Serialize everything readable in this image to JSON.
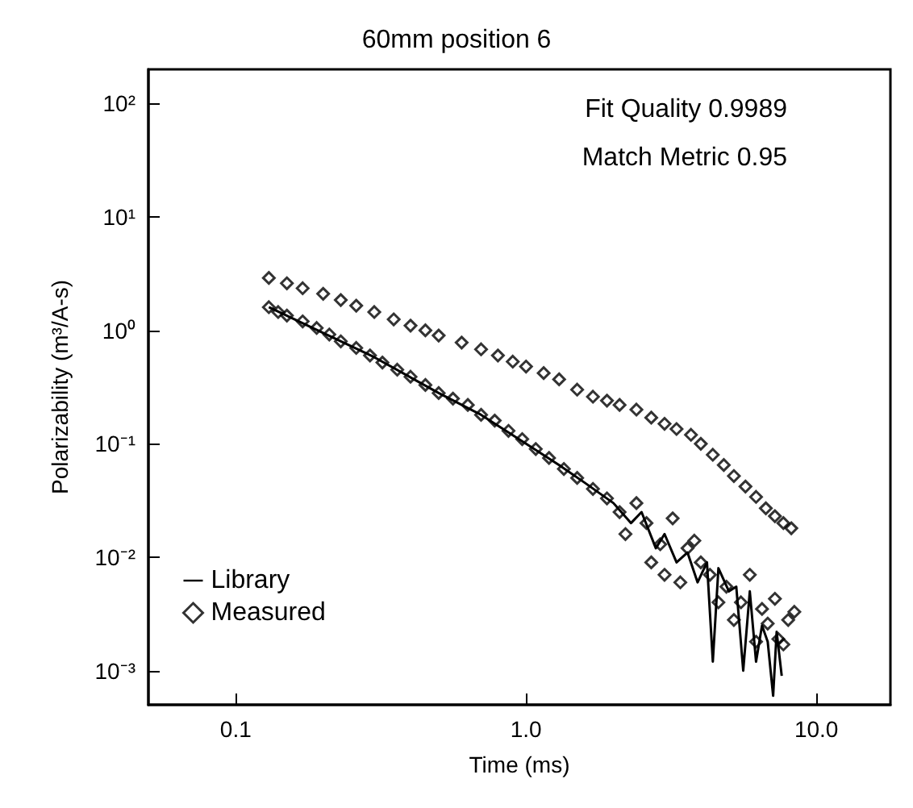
{
  "chart_data": {
    "type": "scatter",
    "title": "60mm position 6",
    "xlabel": "Time (ms)",
    "ylabel": "Polarizability (m³/A-s)",
    "log": "xy",
    "xlim": [
      0.05,
      18
    ],
    "ylim": [
      0.0005,
      200
    ],
    "xticks": [
      {
        "value": 0.1,
        "label": "0.1"
      },
      {
        "value": 1,
        "label": "1.0"
      },
      {
        "value": 10,
        "label": "10.0"
      }
    ],
    "yticks": [
      {
        "value": 0.001,
        "label": "10⁻³"
      },
      {
        "value": 0.01,
        "label": "10⁻²"
      },
      {
        "value": 0.1,
        "label": "10⁻¹"
      },
      {
        "value": 1,
        "label": "10⁰"
      },
      {
        "value": 10,
        "label": "10¹"
      },
      {
        "value": 100,
        "label": "10²"
      }
    ],
    "annotations": [
      "Fit Quality 0.9989",
      "Match Metric 0.95"
    ],
    "legend": "bottom left",
    "grid": false,
    "series": [
      {
        "name": "Library",
        "type": "line",
        "color": "#000000",
        "line_style": "solid",
        "marker": "none",
        "x": [
          0.13,
          0.2,
          0.3,
          0.5,
          0.7,
          1.0,
          1.3,
          1.6,
          2.0,
          2.3,
          2.5,
          2.8,
          3.0,
          3.3,
          3.6,
          3.9,
          4.2,
          4.4,
          4.6,
          5.0,
          5.3,
          5.6,
          5.9,
          6.2,
          6.5,
          6.8,
          7.1,
          7.3,
          7.6
        ],
        "values": [
          1.6,
          0.95,
          0.58,
          0.28,
          0.18,
          0.1,
          0.065,
          0.045,
          0.03,
          0.02,
          0.025,
          0.012,
          0.016,
          0.009,
          0.011,
          0.006,
          0.009,
          0.0012,
          0.008,
          0.005,
          0.0055,
          0.001,
          0.005,
          0.0012,
          0.0025,
          0.0018,
          0.0006,
          0.0022,
          0.0009
        ]
      },
      {
        "name": "Measured",
        "color": "#000000",
        "marker": "diamond",
        "x": [
          0.13,
          0.14,
          0.15,
          0.17,
          0.19,
          0.21,
          0.23,
          0.26,
          0.29,
          0.32,
          0.36,
          0.4,
          0.45,
          0.5,
          0.56,
          0.63,
          0.7,
          0.78,
          0.87,
          0.97,
          1.08,
          1.2,
          1.35,
          1.5,
          1.7,
          1.9,
          2.1,
          2.2,
          2.4,
          2.6,
          2.7,
          2.9,
          3.0,
          3.2,
          3.4,
          3.6,
          3.8,
          4.0,
          4.3,
          4.6,
          4.9,
          5.2,
          5.5,
          5.9,
          6.2,
          6.5,
          6.8,
          7.2,
          7.4,
          7.7,
          8.0,
          8.4
        ],
        "values": [
          1.6,
          1.45,
          1.35,
          1.2,
          1.05,
          0.92,
          0.8,
          0.7,
          0.6,
          0.52,
          0.45,
          0.39,
          0.33,
          0.28,
          0.25,
          0.22,
          0.18,
          0.16,
          0.13,
          0.11,
          0.09,
          0.075,
          0.06,
          0.05,
          0.04,
          0.033,
          0.025,
          0.016,
          0.03,
          0.02,
          0.009,
          0.013,
          0.007,
          0.022,
          0.006,
          0.012,
          0.014,
          0.009,
          0.007,
          0.004,
          0.0055,
          0.0028,
          0.004,
          0.007,
          0.0018,
          0.0035,
          0.0026,
          0.0043,
          0.0019,
          0.0017,
          0.0028,
          0.0033
        ]
      },
      {
        "color": "#000000",
        "marker": "diamond",
        "x": [
          0.13,
          0.15,
          0.17,
          0.2,
          0.23,
          0.26,
          0.3,
          0.35,
          0.4,
          0.45,
          0.5,
          0.6,
          0.7,
          0.8,
          0.9,
          1.0,
          1.15,
          1.3,
          1.5,
          1.7,
          1.9,
          2.1,
          2.4,
          2.7,
          3.0,
          3.3,
          3.7,
          4.0,
          4.4,
          4.8,
          5.2,
          5.7,
          6.2,
          6.7,
          7.2,
          7.7,
          8.2
        ],
        "values": [
          2.9,
          2.6,
          2.35,
          2.1,
          1.85,
          1.65,
          1.45,
          1.25,
          1.1,
          1.0,
          0.9,
          0.78,
          0.68,
          0.6,
          0.53,
          0.48,
          0.42,
          0.37,
          0.3,
          0.26,
          0.24,
          0.22,
          0.2,
          0.17,
          0.15,
          0.135,
          0.12,
          0.1,
          0.08,
          0.065,
          0.052,
          0.042,
          0.034,
          0.027,
          0.023,
          0.02,
          0.018
        ]
      }
    ]
  }
}
